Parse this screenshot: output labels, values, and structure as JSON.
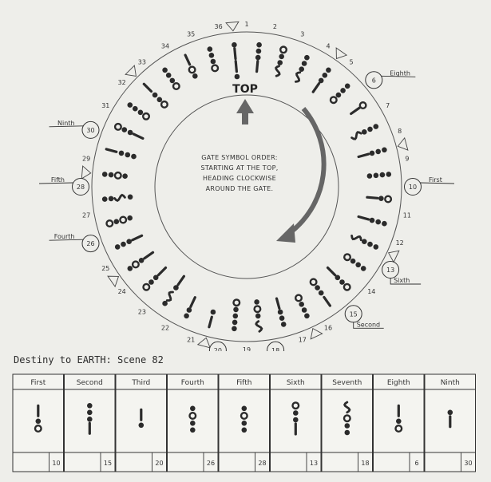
{
  "top_label": "TOP",
  "center_text": [
    "GATE SYMBOL ORDER:",
    "STARTING AT THE TOP,",
    "HEADING CLOCKWISE",
    "AROUND THE GATE."
  ],
  "scene_title": "Destiny to EARTH:  Scene 82",
  "chevrons": [
    36,
    4,
    8,
    12,
    16,
    20,
    24,
    28,
    32
  ],
  "circled": [
    {
      "num": 6,
      "label": "Eighth"
    },
    {
      "num": 10,
      "label": "First"
    },
    {
      "num": 13,
      "label": "Sixth"
    },
    {
      "num": 15,
      "label": "Second"
    },
    {
      "num": 18,
      "label": "Seventh"
    },
    {
      "num": 20,
      "label": "Third"
    },
    {
      "num": 26,
      "label": "Fourth"
    },
    {
      "num": 28,
      "label": "Fifth"
    },
    {
      "num": 30,
      "label": "Ninth"
    }
  ],
  "symbols": {
    "1": [
      "d",
      "d",
      "d",
      "l"
    ],
    "2": [
      "o",
      "d",
      "d",
      "w"
    ],
    "3": [
      "d",
      "d",
      "d",
      "w"
    ],
    "4": [
      "d",
      "d",
      "d",
      "l"
    ],
    "5": [
      "d",
      "d",
      "d",
      "o"
    ],
    "6": [
      "o",
      "l"
    ],
    "7": [
      "d",
      "d",
      "d",
      "w"
    ],
    "8": [
      "d",
      "d",
      "d",
      "l"
    ],
    "9": [
      "d",
      "d",
      "d",
      "d"
    ],
    "10": [
      "o",
      "d",
      "l"
    ],
    "11": [
      "d",
      "d",
      "d",
      "l"
    ],
    "12": [
      "d",
      "d",
      "d",
      "w"
    ],
    "13": [
      "d",
      "d",
      "d",
      "o"
    ],
    "14": [
      "o",
      "d",
      "d",
      "l"
    ],
    "15": [
      "l",
      "d",
      "d",
      "o"
    ],
    "16": [
      "d",
      "d",
      "d",
      "o"
    ],
    "17": [
      "d",
      "d",
      "d",
      "l"
    ],
    "18": [
      "w",
      "d",
      "o",
      "d"
    ],
    "19": [
      "d",
      "d",
      "d",
      "d",
      "o"
    ],
    "20": [
      "l",
      "d"
    ],
    "21": [
      "d",
      "d",
      "l"
    ],
    "22": [
      "d",
      "w",
      "d",
      "l"
    ],
    "23": [
      "o",
      "d",
      "d",
      "l"
    ],
    "24": [
      "d",
      "o",
      "d",
      "l"
    ],
    "25": [
      "d",
      "d",
      "d",
      "l"
    ],
    "26": [
      "o",
      "d",
      "o",
      "d"
    ],
    "27": [
      "d",
      "d",
      "w",
      "d"
    ],
    "28": [
      "d",
      "d",
      "o",
      "d"
    ],
    "29": [
      "l",
      "d",
      "d",
      "d"
    ],
    "30": [
      "o",
      "d",
      "d",
      "l"
    ],
    "31": [
      "d",
      "d",
      "d",
      "o"
    ],
    "32": [
      "l",
      "d",
      "d",
      "o"
    ],
    "33": [
      "d",
      "d",
      "d",
      "o"
    ],
    "34": [
      "l",
      "o",
      "d"
    ],
    "35": [
      "d",
      "d",
      "d",
      "o"
    ],
    "36": [
      "d",
      "l",
      "l",
      "d"
    ]
  },
  "cards": [
    {
      "label": "First",
      "num": "10",
      "glyph": [
        "l",
        "d",
        "o"
      ]
    },
    {
      "label": "Second",
      "num": "15",
      "glyph": [
        "d",
        "d",
        "d",
        "l"
      ]
    },
    {
      "label": "Third",
      "num": "20",
      "glyph": [
        "l",
        "d"
      ]
    },
    {
      "label": "Fourth",
      "num": "26",
      "glyph": [
        "d",
        "o",
        "d",
        "d"
      ]
    },
    {
      "label": "Fifth",
      "num": "28",
      "glyph": [
        "d",
        "o",
        "d",
        "d"
      ]
    },
    {
      "label": "Sixth",
      "num": "13",
      "glyph": [
        "o",
        "d",
        "d",
        "l"
      ]
    },
    {
      "label": "Seventh",
      "num": "18",
      "glyph": [
        "w",
        "o",
        "d",
        "d"
      ]
    },
    {
      "label": "Eighth",
      "num": "6",
      "glyph": [
        "l",
        "d",
        "o"
      ]
    },
    {
      "label": "Ninth",
      "num": "30",
      "glyph": [
        "d",
        "l"
      ]
    }
  ]
}
